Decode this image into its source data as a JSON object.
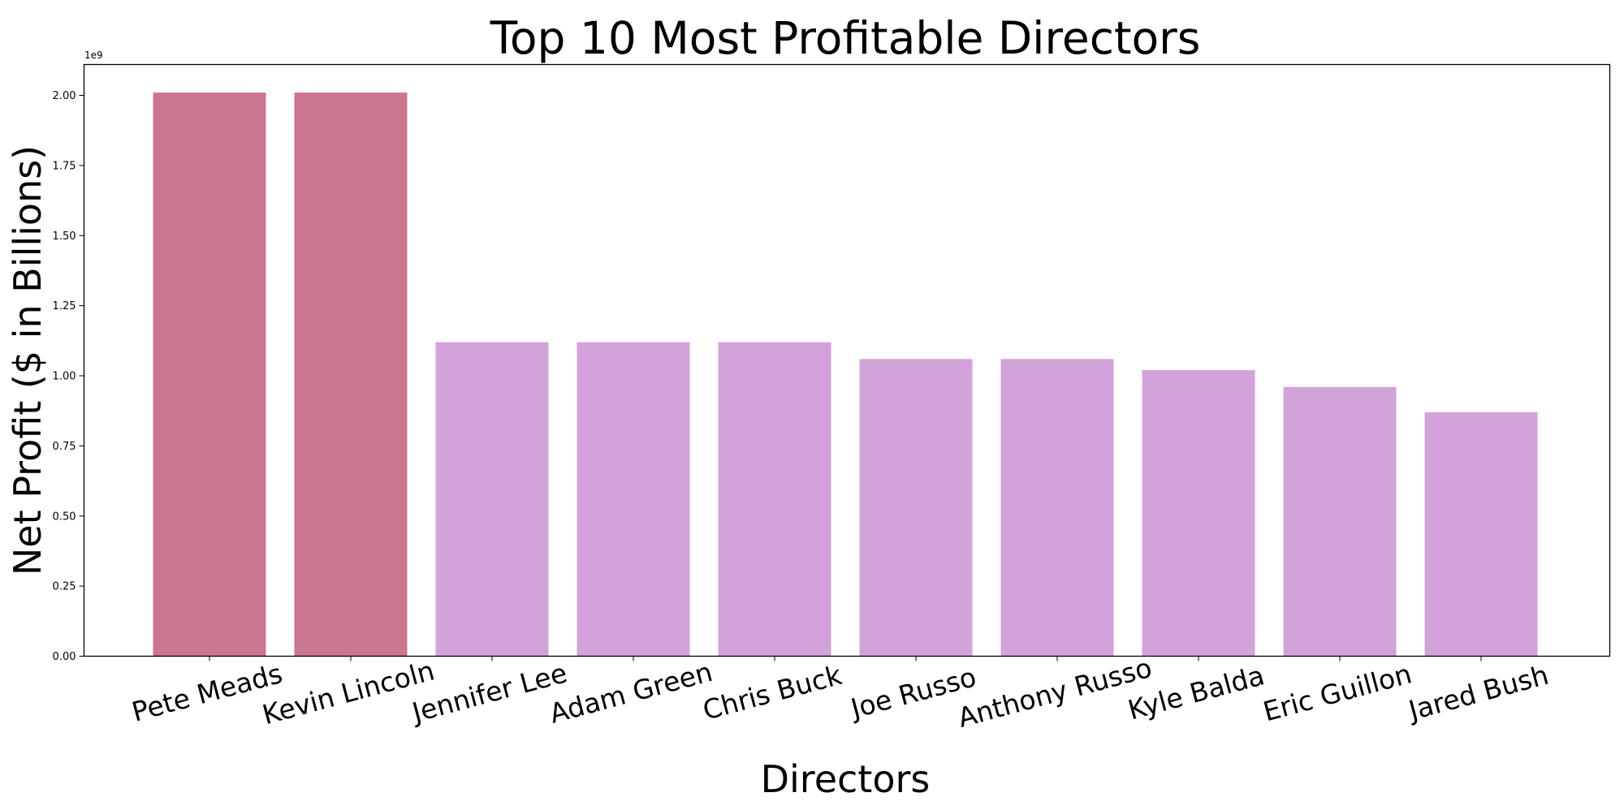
{
  "chart_data": {
    "type": "bar",
    "title": "Top 10 Most Profitable Directors",
    "xlabel": "Directors",
    "ylabel": "Net Profit ($ in Billions)",
    "y_offset_label": "1e9",
    "categories": [
      "Pete Meads",
      "Kevin Lincoln",
      "Jennifer Lee",
      "Adam Green",
      "Chris Buck",
      "Joe Russo",
      "Anthony Russo",
      "Kyle Balda",
      "Eric Guillon",
      "Jared Bush"
    ],
    "values": [
      2.01,
      2.01,
      1.12,
      1.12,
      1.12,
      1.06,
      1.06,
      1.02,
      0.96,
      0.87
    ],
    "value_scale": 1000000000,
    "colors": [
      "#cb758f",
      "#cb758f",
      "#d4a2da",
      "#d4a2da",
      "#d4a2da",
      "#d4a2da",
      "#d4a2da",
      "#d4a2da",
      "#d4a2da",
      "#d4a2da"
    ],
    "ylim": [
      0,
      2.11
    ],
    "yticks": [
      0.0,
      0.25,
      0.5,
      0.75,
      1.0,
      1.25,
      1.5,
      1.75,
      2.0
    ],
    "ytick_labels": [
      "0.00",
      "0.25",
      "0.50",
      "0.75",
      "1.00",
      "1.25",
      "1.50",
      "1.75",
      "2.00"
    ],
    "grid": false,
    "legend": "none"
  }
}
